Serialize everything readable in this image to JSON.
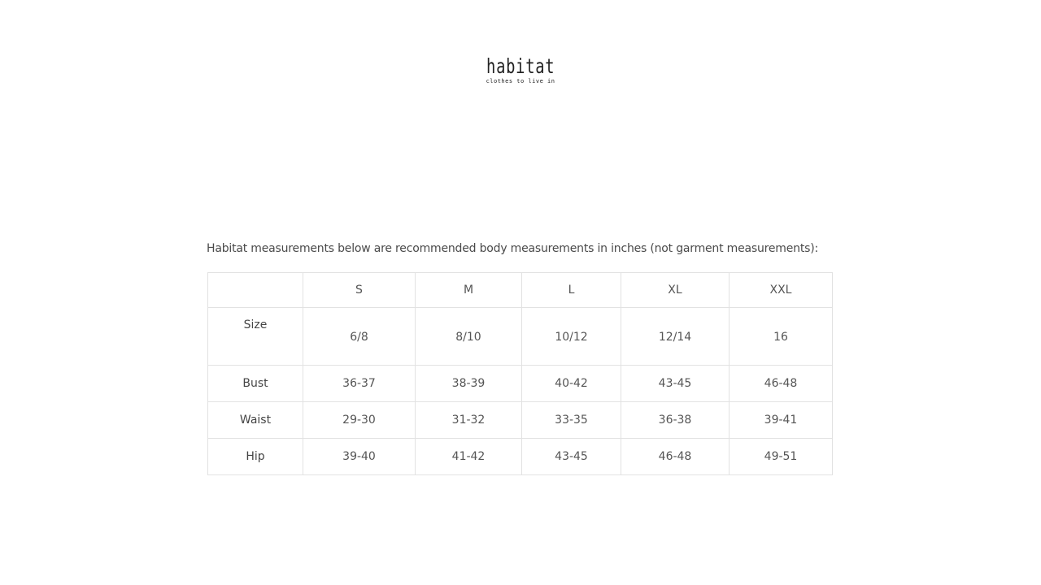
{
  "logo": {
    "name": "habitat",
    "tagline": "clothes to live in"
  },
  "intro": "Habitat measurements below are recommended body measurements in inches (not garment measurements):",
  "table": {
    "headers": [
      "",
      "S",
      "M",
      "L",
      "XL",
      "XXL"
    ],
    "rows": [
      {
        "label": "Size",
        "values": [
          "6/8",
          "8/10",
          "10/12",
          "12/14",
          "16"
        ]
      },
      {
        "label": "Bust",
        "values": [
          "36-37",
          "38-39",
          "40-42",
          "43-45",
          "46-48"
        ]
      },
      {
        "label": "Waist",
        "values": [
          "29-30",
          "31-32",
          "33-35",
          "36-38",
          "39-41"
        ]
      },
      {
        "label": "Hip",
        "values": [
          "39-40",
          "41-42",
          "43-45",
          "46-48",
          "49-51"
        ]
      }
    ]
  }
}
